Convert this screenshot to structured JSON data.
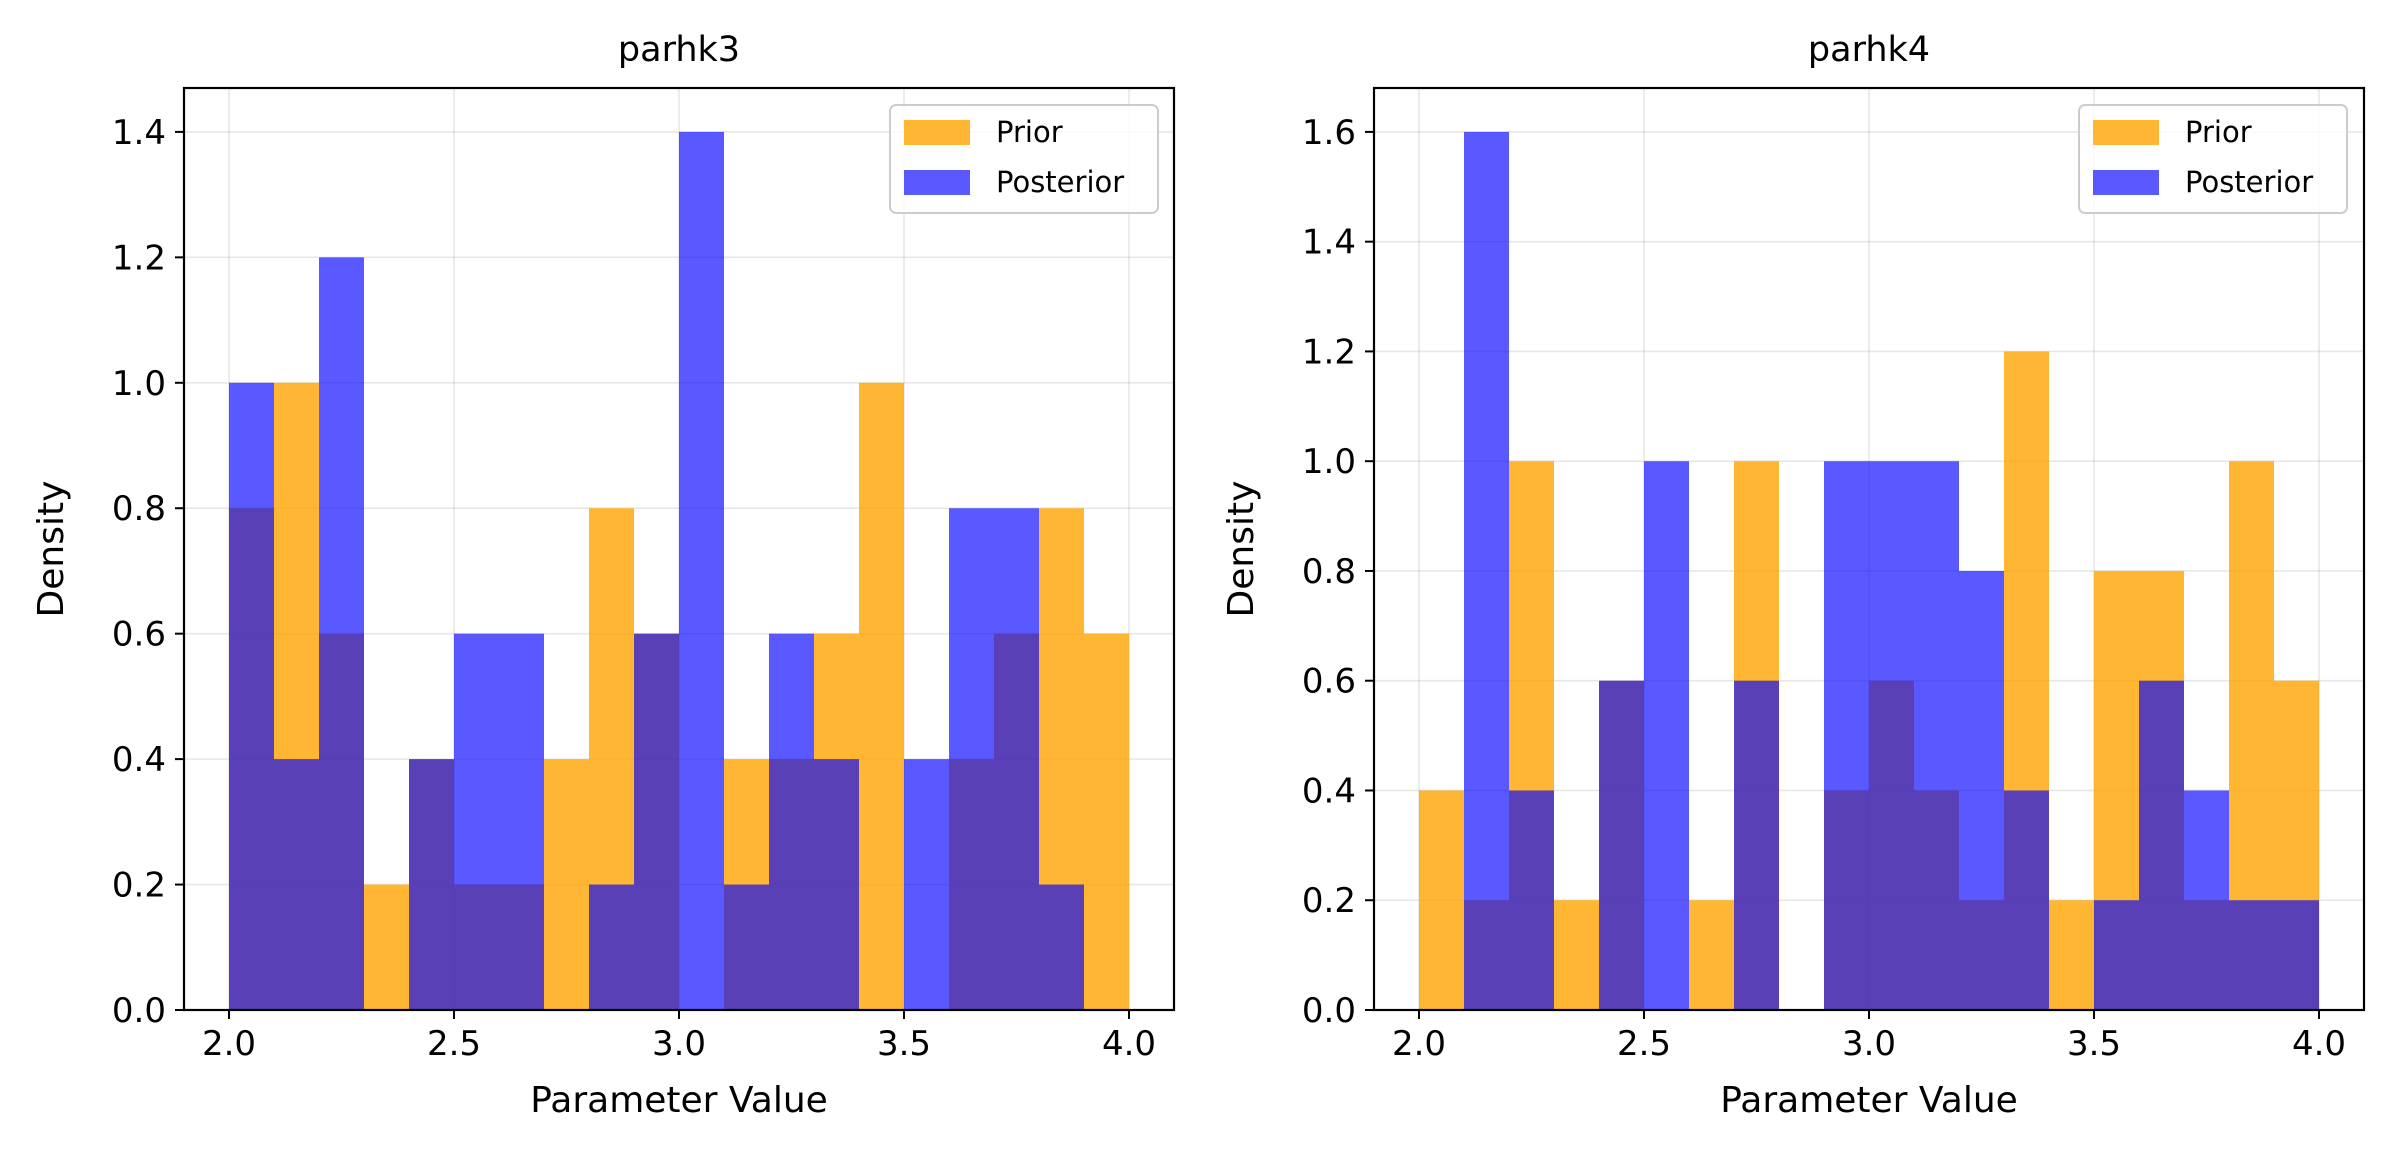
{
  "chart_data": [
    {
      "type": "bar",
      "title": "parhk3",
      "xlabel": "Parameter Value",
      "ylabel": "Density",
      "xlim": [
        1.9,
        4.1
      ],
      "ylim": [
        0,
        1.47
      ],
      "xticks": [
        2.0,
        2.5,
        3.0,
        3.5,
        4.0
      ],
      "xtick_labels": [
        "2.0",
        "2.5",
        "3.0",
        "3.5",
        "4.0"
      ],
      "yticks": [
        0.0,
        0.2,
        0.4,
        0.6,
        0.8,
        1.0,
        1.2,
        1.4
      ],
      "ytick_labels": [
        "0.0",
        "0.2",
        "0.4",
        "0.6",
        "0.8",
        "1.0",
        "1.2",
        "1.4"
      ],
      "grid": true,
      "legend_position": "top-right",
      "bin_edges": [
        2.0,
        2.1,
        2.2,
        2.3,
        2.4,
        2.5,
        2.6,
        2.7,
        2.8,
        2.9,
        3.0,
        3.1,
        3.2,
        3.3,
        3.4,
        3.5,
        3.6,
        3.7,
        3.8,
        3.9,
        4.0
      ],
      "series": [
        {
          "name": "Prior",
          "color": "#FFA500",
          "values": [
            0.8,
            1.0,
            0.6,
            0.2,
            0.4,
            0.2,
            0.2,
            0.4,
            0.8,
            0.6,
            0.0,
            0.4,
            0.4,
            0.6,
            1.0,
            0.0,
            0.4,
            0.6,
            0.8,
            0.6
          ]
        },
        {
          "name": "Posterior",
          "color": "#0000FF",
          "values": [
            1.0,
            0.4,
            1.2,
            0.0,
            0.4,
            0.6,
            0.6,
            0.0,
            0.2,
            0.6,
            1.4,
            0.2,
            0.6,
            0.4,
            0.0,
            0.4,
            0.8,
            0.8,
            0.2,
            0.0
          ]
        }
      ]
    },
    {
      "type": "bar",
      "title": "parhk4",
      "xlabel": "Parameter Value",
      "ylabel": "Density",
      "xlim": [
        1.9,
        4.1
      ],
      "ylim": [
        0,
        1.68
      ],
      "xticks": [
        2.0,
        2.5,
        3.0,
        3.5,
        4.0
      ],
      "xtick_labels": [
        "2.0",
        "2.5",
        "3.0",
        "3.5",
        "4.0"
      ],
      "yticks": [
        0.0,
        0.2,
        0.4,
        0.6,
        0.8,
        1.0,
        1.2,
        1.4,
        1.6
      ],
      "ytick_labels": [
        "0.0",
        "0.2",
        "0.4",
        "0.6",
        "0.8",
        "1.0",
        "1.2",
        "1.4",
        "1.6"
      ],
      "grid": true,
      "legend_position": "top-right",
      "bin_edges": [
        2.0,
        2.1,
        2.2,
        2.3,
        2.4,
        2.5,
        2.6,
        2.7,
        2.8,
        2.9,
        3.0,
        3.1,
        3.2,
        3.3,
        3.4,
        3.5,
        3.6,
        3.7,
        3.8,
        3.9,
        4.0
      ],
      "series": [
        {
          "name": "Prior",
          "color": "#FFA500",
          "values": [
            0.4,
            0.2,
            1.0,
            0.2,
            0.6,
            0.0,
            0.2,
            1.0,
            0.0,
            0.4,
            0.6,
            0.4,
            0.2,
            1.2,
            0.2,
            0.8,
            0.8,
            0.2,
            1.0,
            0.6
          ]
        },
        {
          "name": "Posterior",
          "color": "#0000FF",
          "values": [
            0.0,
            1.6,
            0.4,
            0.0,
            0.6,
            1.0,
            0.0,
            0.6,
            0.0,
            1.0,
            1.0,
            1.0,
            0.8,
            0.4,
            0.0,
            0.2,
            0.6,
            0.4,
            0.2,
            0.2
          ]
        }
      ]
    }
  ]
}
